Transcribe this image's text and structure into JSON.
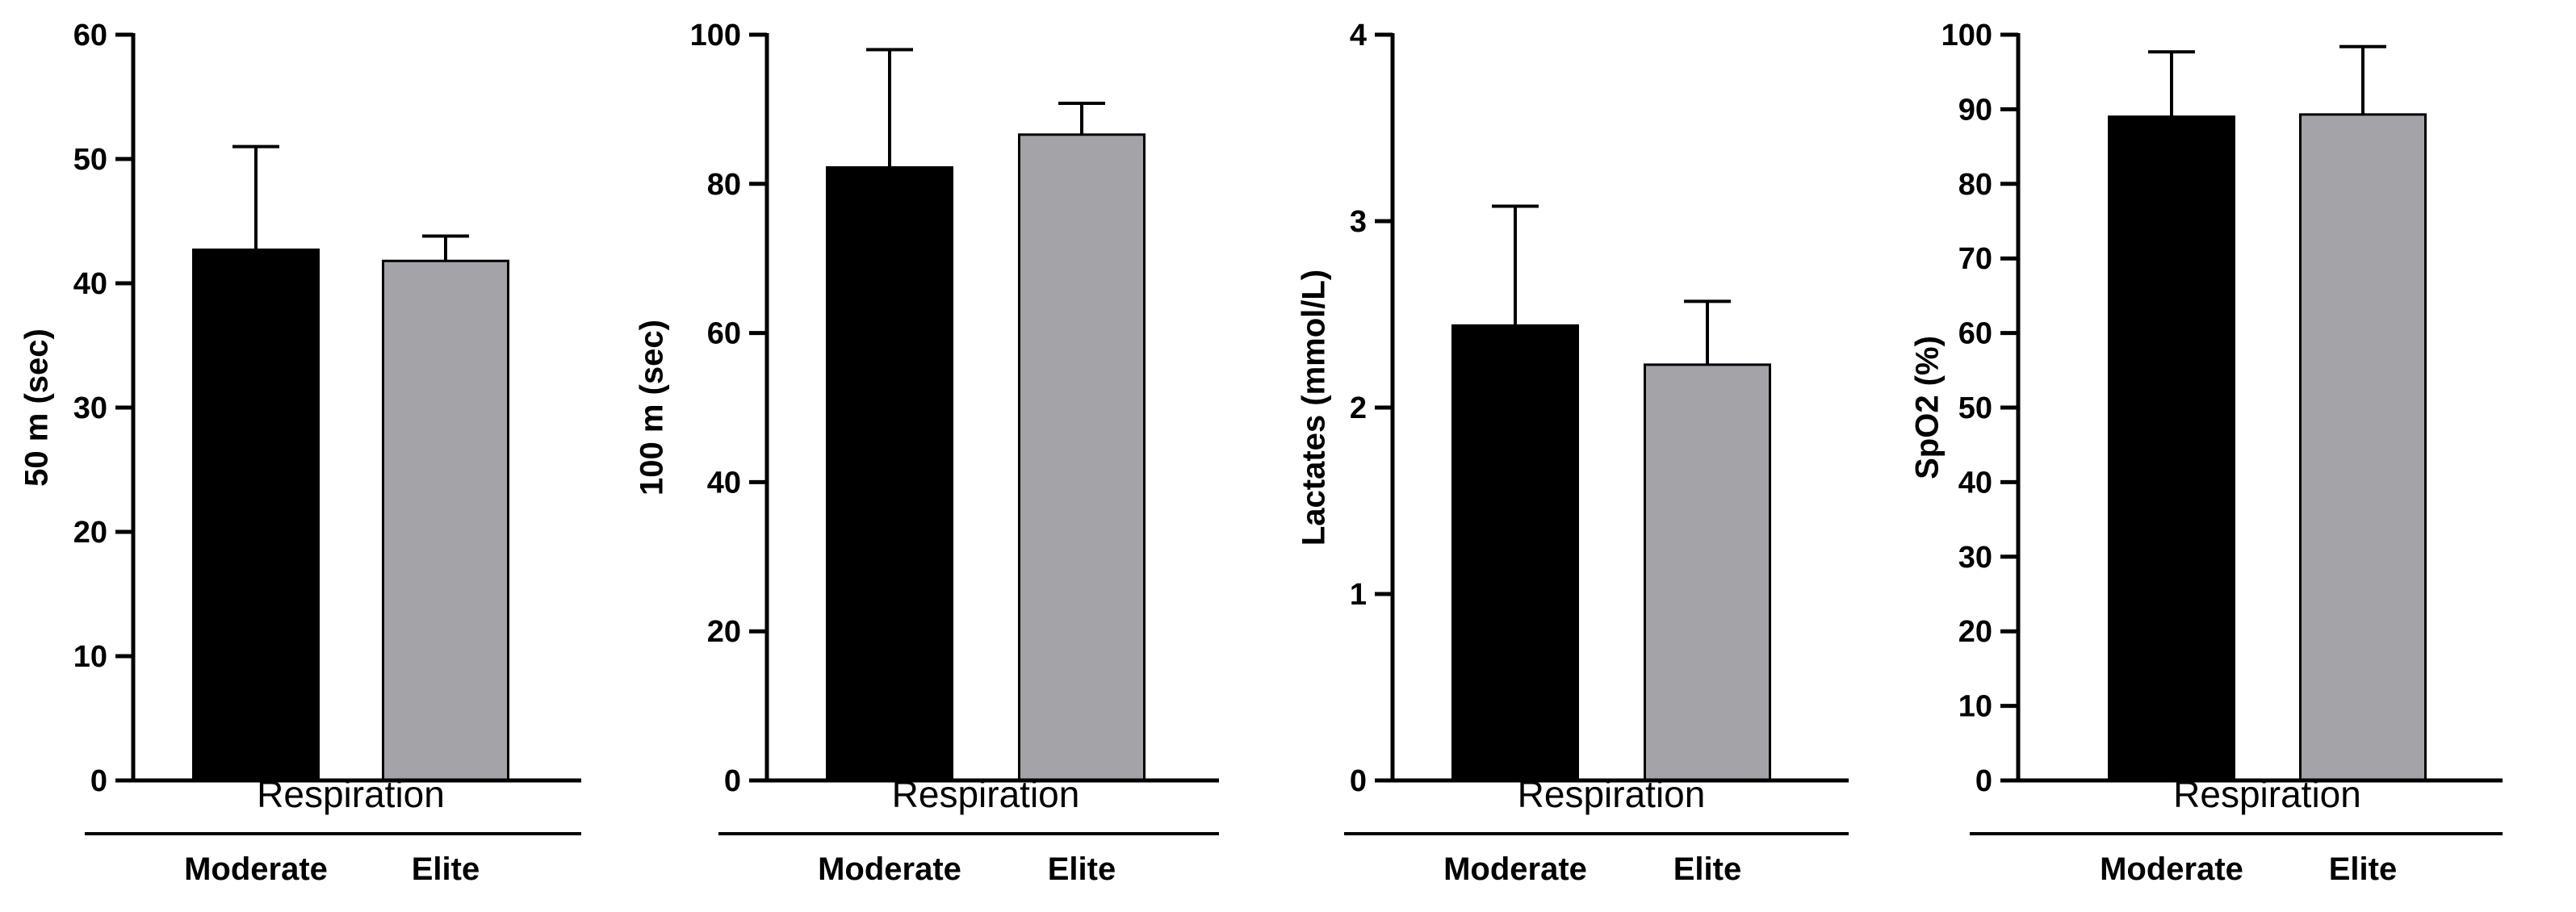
{
  "colors": {
    "moderate_fill": "#000000",
    "elite_fill": "#a3a3a8",
    "axis": "#000000",
    "background": "#ffffff"
  },
  "chart_data": [
    {
      "type": "bar",
      "ylabel": "50 m (sec)",
      "group_title": "Respiration",
      "categories": [
        "Moderate",
        "Elite"
      ],
      "values": [
        42.7,
        41.8
      ],
      "errors": [
        8.3,
        2.0
      ],
      "ylim": [
        0,
        60
      ],
      "yticks": [
        0,
        10,
        20,
        30,
        40,
        50,
        60
      ],
      "grid": false
    },
    {
      "type": "bar",
      "ylabel": "100 m (sec)",
      "group_title": "Respiration",
      "categories": [
        "Moderate",
        "Elite"
      ],
      "values": [
        82.2,
        86.6
      ],
      "errors": [
        15.8,
        4.2
      ],
      "ylim": [
        0,
        100
      ],
      "yticks": [
        0,
        20,
        40,
        60,
        80,
        100
      ],
      "grid": false
    },
    {
      "type": "bar",
      "ylabel": "Lactates (mmol/L)",
      "group_title": "Respiration",
      "categories": [
        "Moderate",
        "Elite"
      ],
      "values": [
        2.44,
        2.23
      ],
      "errors": [
        0.64,
        0.34
      ],
      "ylim": [
        0,
        4
      ],
      "yticks": [
        0,
        1,
        2,
        3,
        4
      ],
      "grid": false
    },
    {
      "type": "bar",
      "ylabel": "SpO2 (%)",
      "group_title": "Respiration",
      "categories": [
        "Moderate",
        "Elite"
      ],
      "values": [
        89.0,
        89.3
      ],
      "errors": [
        8.7,
        9.1
      ],
      "ylim": [
        0,
        100
      ],
      "yticks": [
        0,
        10,
        20,
        30,
        40,
        50,
        60,
        70,
        80,
        90,
        100
      ],
      "grid": false
    }
  ]
}
